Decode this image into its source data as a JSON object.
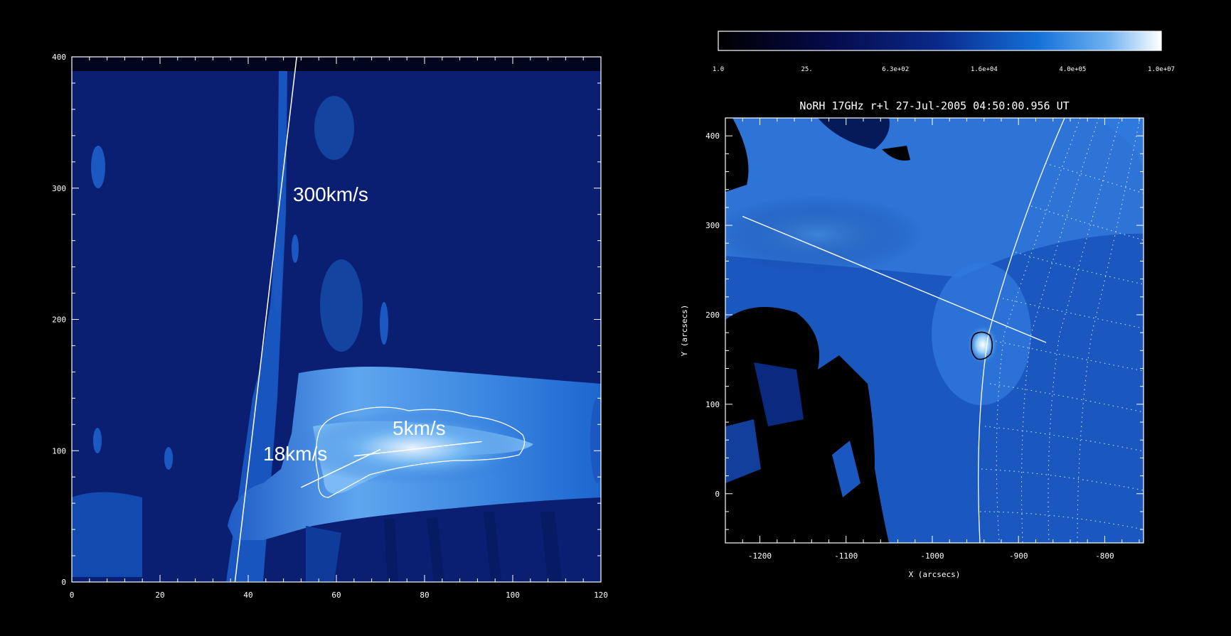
{
  "chart_data": [
    {
      "type": "heatmap",
      "title": "",
      "xlabel": "",
      "ylabel": "",
      "xlim": [
        0,
        120
      ],
      "ylim": [
        0,
        400
      ],
      "xticks": [
        0,
        20,
        40,
        60,
        80,
        100,
        120
      ],
      "yticks": [
        0,
        100,
        200,
        300,
        400
      ],
      "lines": [
        {
          "label": "300km/s",
          "points": [
            [
              37,
              0
            ],
            [
              51,
              400
            ]
          ]
        },
        {
          "label": "18km/s",
          "points": [
            [
              52,
              72
            ],
            [
              70,
              101
            ]
          ]
        },
        {
          "label": "5km/s",
          "points": [
            [
              64,
              96
            ],
            [
              93,
              107
            ]
          ]
        }
      ],
      "annotations": [
        "300km/s",
        "18km/s",
        "5km/s"
      ],
      "contour": "white",
      "colormap": "blue"
    },
    {
      "type": "heatmap",
      "title": "NoRH 17GHz r+l 27-Jul-2005 04:50:00.956 UT",
      "xlabel": "X (arcsecs)",
      "ylabel": "Y (arcsecs)",
      "xlim": [
        -1240,
        -755
      ],
      "ylim": [
        -55,
        420
      ],
      "xticks": [
        -1200,
        -1100,
        -1000,
        -900,
        -800
      ],
      "yticks": [
        0,
        100,
        200,
        300,
        400
      ],
      "colorbar": {
        "scale": "log",
        "range": [
          1.0,
          10000000
        ],
        "tick_labels": [
          "1.0",
          "25.",
          "6.3e+02",
          "1.6e+04",
          "4.0e+05",
          "1.0e+07"
        ]
      },
      "slit_line": [
        [
          -1220,
          310
        ],
        [
          -868,
          169
        ]
      ],
      "source_contour_center": [
        -943,
        165
      ],
      "limb": "solar limb with dotted heliographic grid",
      "colormap": "blue"
    }
  ]
}
